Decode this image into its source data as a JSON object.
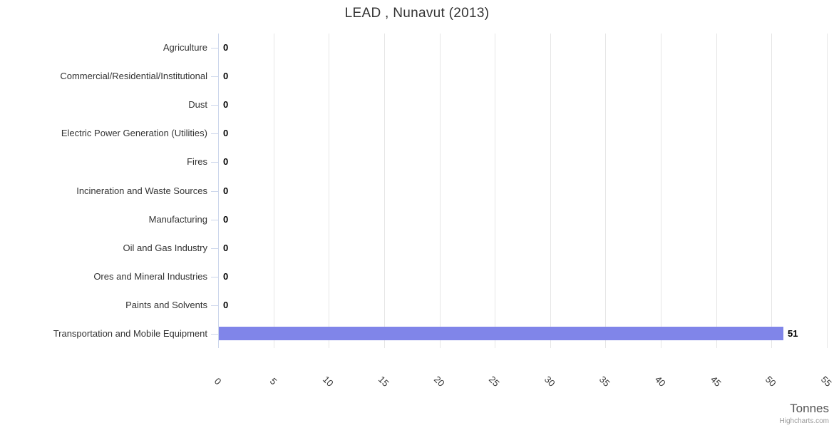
{
  "title": "LEAD , Nunavut (2013)",
  "axis_title": "Tonnes",
  "credits": "Highcharts.com",
  "colors": {
    "bar": "#8085e9",
    "gridline": "#e6e6e6",
    "axis_line": "#ccd6eb",
    "title": "#333333",
    "category_label": "#333333",
    "data_label": "#000000",
    "axis_title": "#555555",
    "credits": "#999999"
  },
  "chart_data": {
    "type": "bar",
    "orientation": "horizontal",
    "title": "LEAD , Nunavut (2013)",
    "categories": [
      "Agriculture",
      "Commercial/Residential/Institutional",
      "Dust",
      "Electric Power Generation (Utilities)",
      "Fires",
      "Incineration and Waste Sources",
      "Manufacturing",
      "Oil and Gas Industry",
      "Ores and Mineral Industries",
      "Paints and Solvents",
      "Transportation and Mobile Equipment"
    ],
    "values": [
      0,
      0,
      0,
      0,
      0,
      0,
      0,
      0,
      0,
      0,
      51
    ],
    "data_labels": [
      "0",
      "0",
      "0",
      "0",
      "0",
      "0",
      "0",
      "0",
      "0",
      "0",
      "51"
    ],
    "value_axis": {
      "label": "Tonnes",
      "min": 0,
      "max": 55,
      "tick_interval": 5,
      "ticks": [
        0,
        5,
        10,
        15,
        20,
        25,
        30,
        35,
        40,
        45,
        50,
        55
      ]
    },
    "legend": "none",
    "grid": true
  }
}
